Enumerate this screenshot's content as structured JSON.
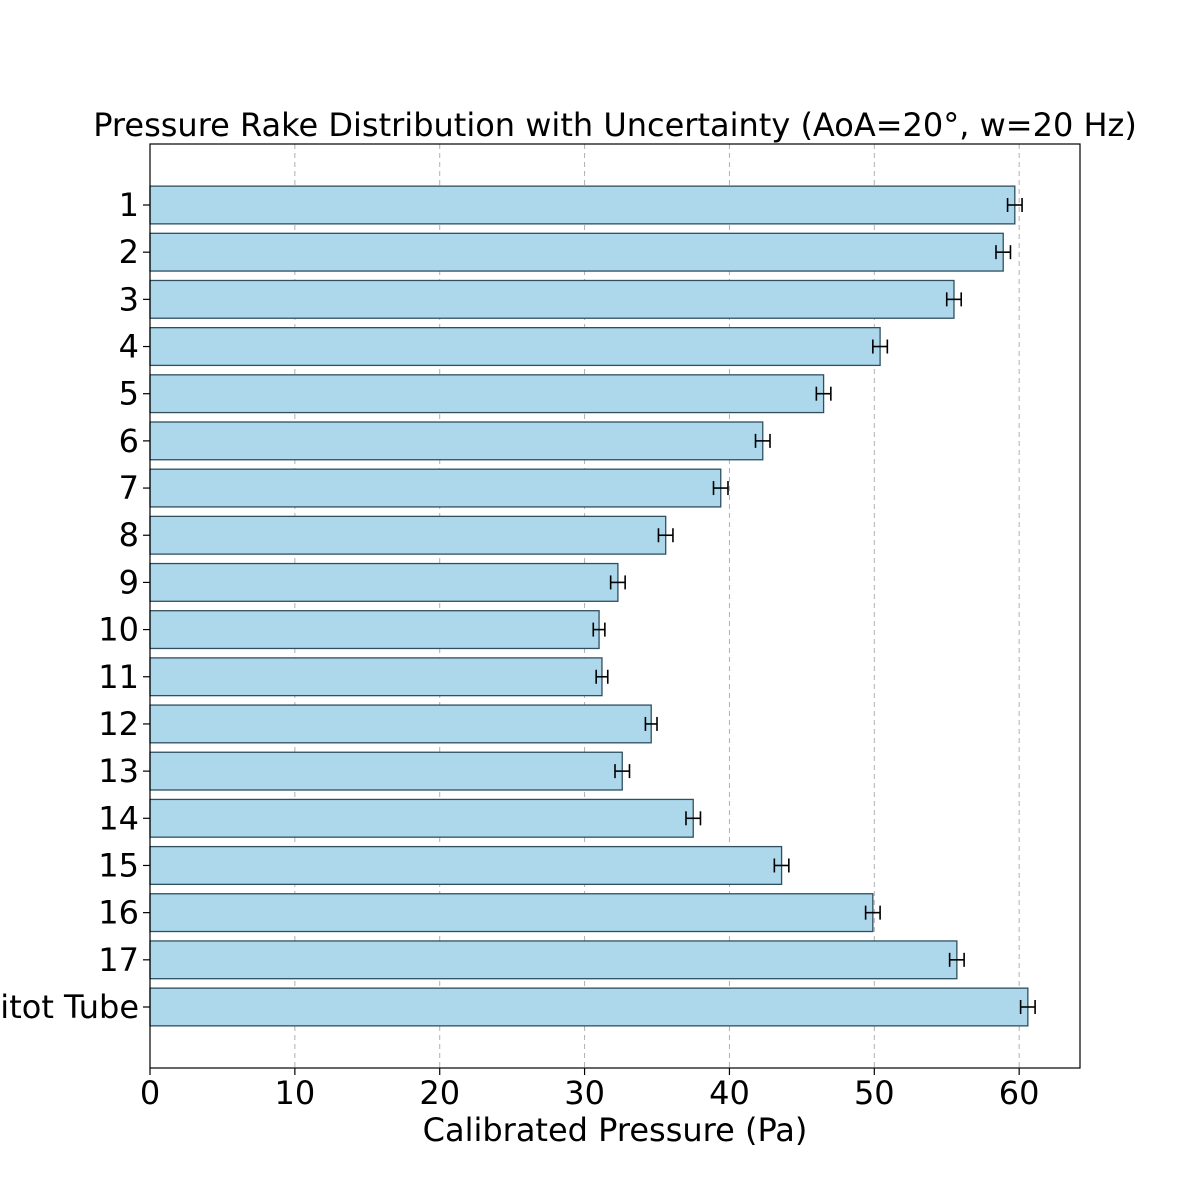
{
  "chart_data": {
    "type": "bar",
    "orientation": "horizontal",
    "title": "Pressure Rake Distribution with Uncertainty (AoA=20°, w=20 Hz)",
    "xlabel": "Calibrated Pressure (Pa)",
    "ylabel": "",
    "categories": [
      "1",
      "2",
      "3",
      "4",
      "5",
      "6",
      "7",
      "8",
      "9",
      "10",
      "11",
      "12",
      "13",
      "14",
      "15",
      "16",
      "17",
      "Pitot Tube"
    ],
    "values": [
      59.7,
      58.9,
      55.5,
      50.4,
      46.5,
      42.3,
      39.4,
      35.6,
      32.3,
      31.0,
      31.2,
      34.6,
      32.6,
      37.5,
      43.6,
      49.9,
      55.7,
      60.6
    ],
    "errors": [
      0.5,
      0.5,
      0.5,
      0.5,
      0.5,
      0.5,
      0.5,
      0.5,
      0.5,
      0.4,
      0.4,
      0.4,
      0.5,
      0.5,
      0.5,
      0.5,
      0.5,
      0.5
    ],
    "xlim": [
      0,
      64.2
    ],
    "xticks": [
      0,
      10,
      20,
      30,
      40,
      50,
      60
    ],
    "bar_color": "#add8ec",
    "edge_color": "#2f4f5f",
    "grid": "vertical dashed",
    "legend": "none"
  }
}
